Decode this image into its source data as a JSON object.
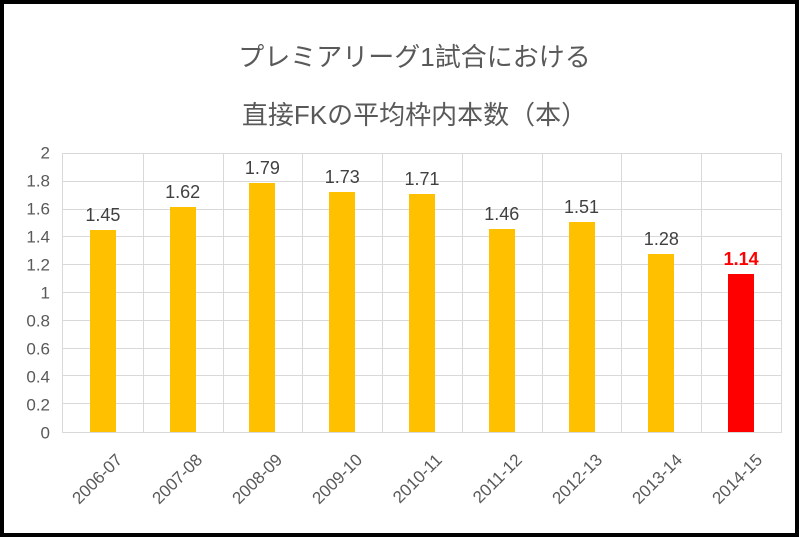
{
  "title": {
    "line1": "プレミアリーグ1試合における",
    "line2": "直接FKの平均枠内本数（本）"
  },
  "chart_data": {
    "type": "bar",
    "title": "プレミアリーグ1試合における 直接FKの平均枠内本数（本）",
    "categories": [
      "2006-07",
      "2007-08",
      "2008-09",
      "2009-10",
      "2010-11",
      "2011-12",
      "2012-13",
      "2013-14",
      "2014-15"
    ],
    "values": [
      1.45,
      1.62,
      1.79,
      1.73,
      1.71,
      1.46,
      1.51,
      1.28,
      1.14
    ],
    "labels": [
      "1.45",
      "1.62",
      "1.79",
      "1.73",
      "1.71",
      "1.46",
      "1.51",
      "1.28",
      "1.14"
    ],
    "xlabel": "",
    "ylabel": "",
    "ylim": [
      0,
      2
    ],
    "ytick_step": 0.2,
    "ytick_labels": [
      "0",
      "0.2",
      "0.4",
      "0.6",
      "0.8",
      "1",
      "1.2",
      "1.4",
      "1.6",
      "1.8",
      "2"
    ],
    "grid": true,
    "legend": false,
    "highlight_index": 8,
    "colors": {
      "bar": "#FFC000",
      "highlight_bar": "#FF0000",
      "label_text": "#404040",
      "highlight_label_text": "#FF0000",
      "axis_text": "#595959",
      "title_text": "#595959",
      "gridline": "#D9D9D9",
      "frame_border": "#000000"
    }
  }
}
